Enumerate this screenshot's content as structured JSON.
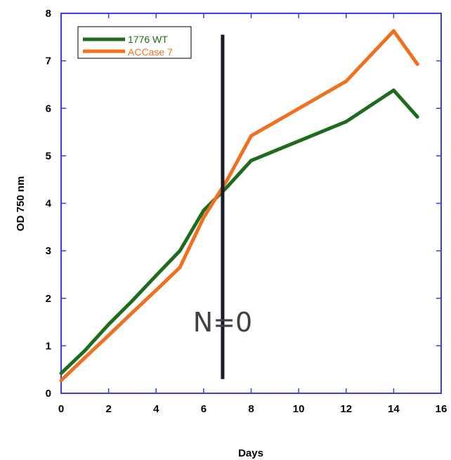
{
  "chart_data": {
    "type": "line",
    "xlabel": "Days",
    "ylabel": "OD 750 nm",
    "xlim": [
      0,
      16
    ],
    "ylim": [
      0,
      8
    ],
    "xticks": [
      0,
      2,
      4,
      6,
      8,
      10,
      12,
      14,
      16
    ],
    "yticks": [
      0,
      1,
      2,
      3,
      4,
      5,
      6,
      7,
      8
    ],
    "grid": false,
    "legend": "top-left",
    "series": [
      {
        "name": "1776 WT",
        "color": "#1e6b1e",
        "x": [
          0,
          1,
          2,
          3,
          4,
          5,
          6,
          7,
          8,
          12,
          14,
          15
        ],
        "y": [
          0.42,
          0.9,
          1.45,
          1.95,
          2.48,
          3.0,
          3.85,
          4.35,
          4.9,
          5.72,
          6.38,
          5.82
        ]
      },
      {
        "name": "ACCase 7",
        "color": "#f07020",
        "x": [
          0,
          1,
          2,
          3,
          4,
          5,
          6,
          7,
          8,
          12,
          14,
          15
        ],
        "y": [
          0.27,
          0.75,
          1.22,
          1.7,
          2.17,
          2.65,
          3.7,
          4.5,
          5.42,
          6.57,
          7.63,
          6.93
        ]
      }
    ],
    "annotations": [
      {
        "type": "vline",
        "x": 6.8,
        "y_from": 0.3,
        "y_to": 7.55,
        "color": "#1a1a2a"
      },
      {
        "type": "text",
        "text": "N=0",
        "x": 6.8,
        "y": 1.3
      }
    ]
  }
}
